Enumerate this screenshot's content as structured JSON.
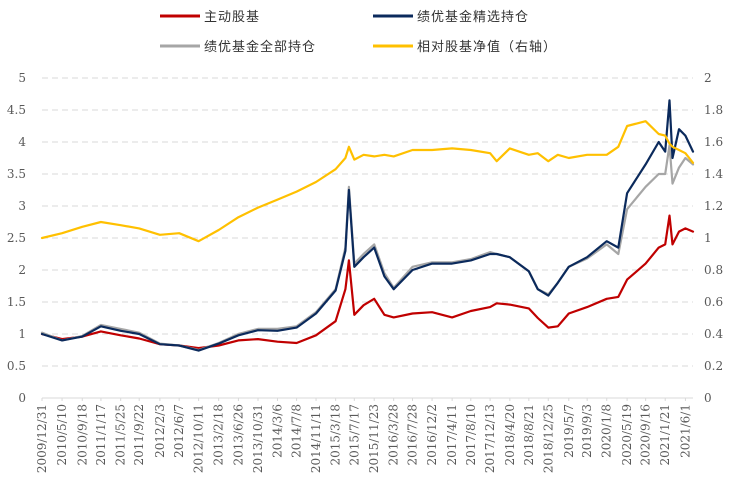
{
  "chart_data": {
    "type": "line",
    "title": "",
    "legend_position": "top",
    "y_left": {
      "min": 0,
      "max": 5,
      "ticks": [
        "0",
        "0.5",
        "1",
        "1.5",
        "2",
        "2.5",
        "3",
        "3.5",
        "4",
        "4.5",
        "5"
      ]
    },
    "y_right": {
      "min": 0,
      "max": 2,
      "ticks": [
        "0",
        "0.2",
        "0.4",
        "0.6",
        "0.8",
        "1",
        "1.2",
        "1.4",
        "1.6",
        "1.8",
        "2"
      ]
    },
    "x_tick_labels": [
      "2009/12/31",
      "2010/5/10",
      "2010/9/18",
      "2011/1/17",
      "2011/5/25",
      "2011/9/22",
      "2012/2/3",
      "2012/6/7",
      "2012/10/11",
      "2013/2/18",
      "2013/6/26",
      "2013/10/31",
      "2014/3/6",
      "2014/7/8",
      "2014/11/11",
      "2015/3/18",
      "2015/7/17",
      "2015/11/23",
      "2016/3/28",
      "2016/7/28",
      "2016/12/2",
      "2017/4/11",
      "2017/8/10",
      "2017/12/13",
      "2018/4/20",
      "2018/8/21",
      "2018/12/25",
      "2019/5/7",
      "2019/9/3",
      "2020/1/8",
      "2020/5/19",
      "2020/9/16",
      "2021/1/21",
      "2021/6/1"
    ],
    "x_points": [
      "2009/12/31",
      "2010/5/10",
      "2010/9/18",
      "2011/1/17",
      "2011/5/25",
      "2011/9/22",
      "2012/2/3",
      "2012/6/7",
      "2012/10/11",
      "2013/2/18",
      "2013/6/26",
      "2013/10/31",
      "2014/3/6",
      "2014/7/8",
      "2014/11/11",
      "2015/3/18",
      "2015/5/20",
      "2015/6/12",
      "2015/7/17",
      "2015/9/15",
      "2015/11/23",
      "2016/1/28",
      "2016/3/28",
      "2016/7/28",
      "2016/12/2",
      "2017/4/11",
      "2017/8/10",
      "2017/12/13",
      "2018/1/25",
      "2018/4/20",
      "2018/8/21",
      "2018/10/18",
      "2018/12/25",
      "2019/2/25",
      "2019/5/7",
      "2019/9/3",
      "2020/1/8",
      "2020/3/23",
      "2020/5/19",
      "2020/9/16",
      "2020/12/10",
      "2021/1/21",
      "2021/2/18",
      "2021/3/9",
      "2021/4/20",
      "2021/6/1",
      "2021/7/20"
    ],
    "series": [
      {
        "name": "主动股基",
        "color": "#C00000",
        "axis": "left",
        "values": [
          1.0,
          0.92,
          0.96,
          1.04,
          0.98,
          0.93,
          0.84,
          0.82,
          0.78,
          0.82,
          0.9,
          0.92,
          0.88,
          0.86,
          0.98,
          1.2,
          1.7,
          2.15,
          1.3,
          1.45,
          1.55,
          1.3,
          1.26,
          1.32,
          1.34,
          1.26,
          1.36,
          1.42,
          1.48,
          1.46,
          1.4,
          1.25,
          1.1,
          1.12,
          1.32,
          1.42,
          1.55,
          1.58,
          1.85,
          2.1,
          2.35,
          2.4,
          2.85,
          2.4,
          2.6,
          2.65,
          2.6
        ]
      },
      {
        "name": "绩优基金精选持仓",
        "color": "#0B2A5C",
        "axis": "left",
        "values": [
          1.0,
          0.9,
          0.96,
          1.12,
          1.05,
          1.0,
          0.84,
          0.82,
          0.74,
          0.85,
          0.98,
          1.06,
          1.05,
          1.1,
          1.32,
          1.68,
          2.3,
          3.25,
          2.05,
          2.2,
          2.35,
          1.9,
          1.7,
          2.0,
          2.1,
          2.1,
          2.15,
          2.25,
          2.25,
          2.2,
          1.98,
          1.7,
          1.6,
          1.8,
          2.05,
          2.2,
          2.45,
          2.35,
          3.2,
          3.65,
          4.0,
          3.85,
          4.65,
          3.75,
          4.2,
          4.1,
          3.85
        ]
      },
      {
        "name": "绩优基金全部持仓",
        "color": "#A6A6A6",
        "axis": "left",
        "values": [
          1.02,
          0.9,
          0.97,
          1.14,
          1.08,
          1.02,
          0.85,
          0.82,
          0.75,
          0.86,
          1.0,
          1.08,
          1.08,
          1.12,
          1.34,
          1.7,
          2.35,
          3.3,
          2.1,
          2.25,
          2.4,
          1.95,
          1.72,
          2.05,
          2.12,
          2.12,
          2.17,
          2.28,
          2.25,
          2.2,
          1.98,
          1.7,
          1.62,
          1.8,
          2.05,
          2.18,
          2.4,
          2.25,
          2.95,
          3.3,
          3.5,
          3.5,
          3.95,
          3.35,
          3.6,
          3.75,
          3.65
        ]
      },
      {
        "name": "相对股基净值（右轴）",
        "color": "#FFC000",
        "axis": "right",
        "values": [
          1.0,
          1.03,
          1.07,
          1.1,
          1.08,
          1.06,
          1.02,
          1.03,
          0.98,
          1.05,
          1.13,
          1.19,
          1.24,
          1.29,
          1.35,
          1.43,
          1.5,
          1.57,
          1.49,
          1.52,
          1.51,
          1.52,
          1.51,
          1.55,
          1.55,
          1.56,
          1.55,
          1.53,
          1.48,
          1.56,
          1.52,
          1.53,
          1.48,
          1.52,
          1.5,
          1.52,
          1.52,
          1.57,
          1.7,
          1.73,
          1.65,
          1.64,
          1.59,
          1.57,
          1.55,
          1.53,
          1.47
        ]
      }
    ]
  }
}
